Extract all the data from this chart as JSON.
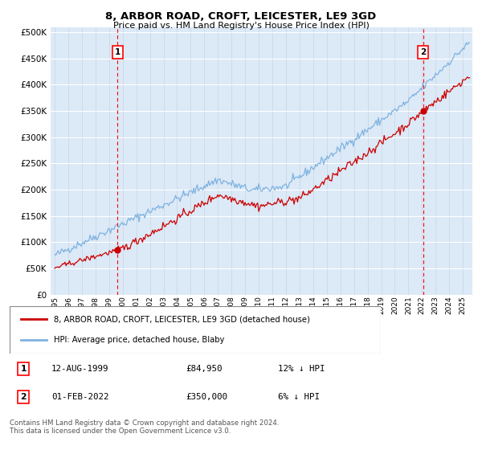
{
  "title": "8, ARBOR ROAD, CROFT, LEICESTER, LE9 3GD",
  "subtitle": "Price paid vs. HM Land Registry's House Price Index (HPI)",
  "ytick_values": [
    0,
    50000,
    100000,
    150000,
    200000,
    250000,
    300000,
    350000,
    400000,
    450000,
    500000
  ],
  "ylabel_ticks": [
    "£0",
    "£50K",
    "£100K",
    "£150K",
    "£200K",
    "£250K",
    "£300K",
    "£350K",
    "£400K",
    "£450K",
    "£500K"
  ],
  "ylim": [
    0,
    510000
  ],
  "xlim_start": 1994.7,
  "xlim_end": 2025.7,
  "bg_color": "#dce9f7",
  "hpi_color": "#7fb3e0",
  "price_color": "#cc0000",
  "marker1_year": 1999.62,
  "marker1_price": 84950,
  "marker1_label": "12-AUG-1999",
  "marker1_amt": "£84,950",
  "marker1_pct": "12% ↓ HPI",
  "marker2_year": 2022.08,
  "marker2_price": 350000,
  "marker2_label": "01-FEB-2022",
  "marker2_amt": "£350,000",
  "marker2_pct": "6% ↓ HPI",
  "legend_house_label": "8, ARBOR ROAD, CROFT, LEICESTER, LE9 3GD (detached house)",
  "legend_hpi_label": "HPI: Average price, detached house, Blaby",
  "footnote": "Contains HM Land Registry data © Crown copyright and database right 2024.\nThis data is licensed under the Open Government Licence v3.0."
}
